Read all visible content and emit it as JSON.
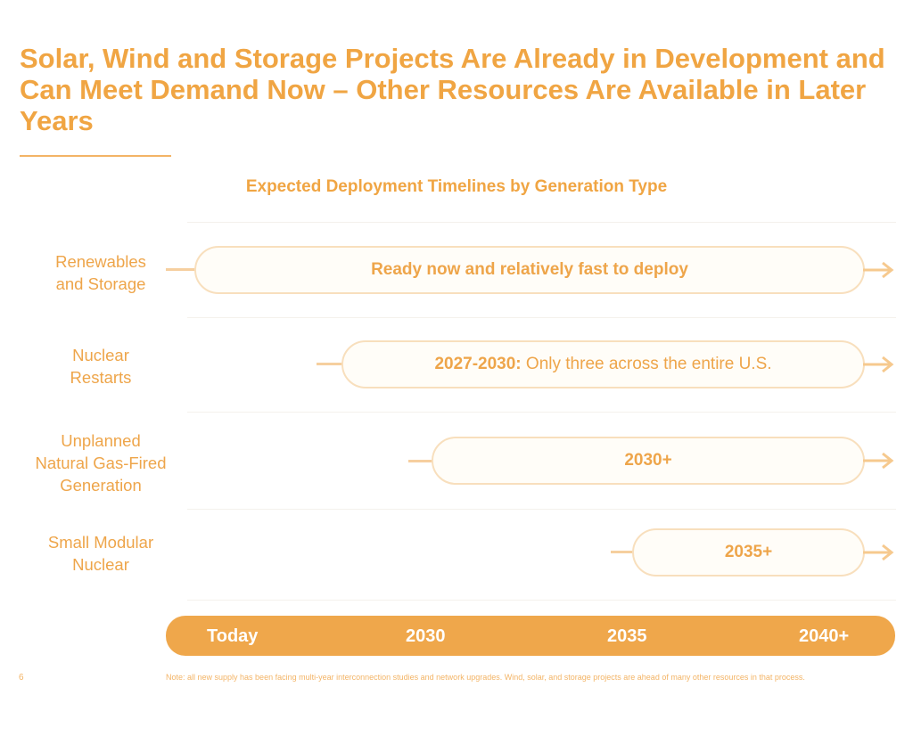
{
  "title": "Solar, Wind and Storage Projects Are Already in Development and Can Meet Demand Now – Other Resources Are Available in Later Years",
  "chart_data": {
    "type": "timeline",
    "title": "Expected Deployment Timelines by Generation Type",
    "axis_ticks": [
      "Today",
      "2030",
      "2035",
      "2040+"
    ],
    "rows": [
      {
        "label": [
          "Renewables",
          "and Storage"
        ],
        "bar_bold": "Ready now and relatively fast to deploy",
        "bar_text": ""
      },
      {
        "label": [
          "Nuclear",
          "Restarts"
        ],
        "bar_bold": "2027-2030:",
        "bar_text": " Only three across the entire U.S."
      },
      {
        "label": [
          "Unplanned",
          "Natural Gas-Fired",
          "Generation"
        ],
        "bar_bold": "2030+",
        "bar_text": ""
      },
      {
        "label": [
          "Small Modular",
          "Nuclear"
        ],
        "bar_bold": "2035+",
        "bar_text": ""
      }
    ]
  },
  "footer": {
    "page_number": "6",
    "note": "Note: all new supply has been facing multi-year interconnection studies and network upgrades. Wind, solar, and storage projects are ahead of many other resources in that process."
  },
  "colors": {
    "accent": "#efa74b",
    "bar_border": "#f8dfbd",
    "bar_fill": "#fffdf8"
  }
}
